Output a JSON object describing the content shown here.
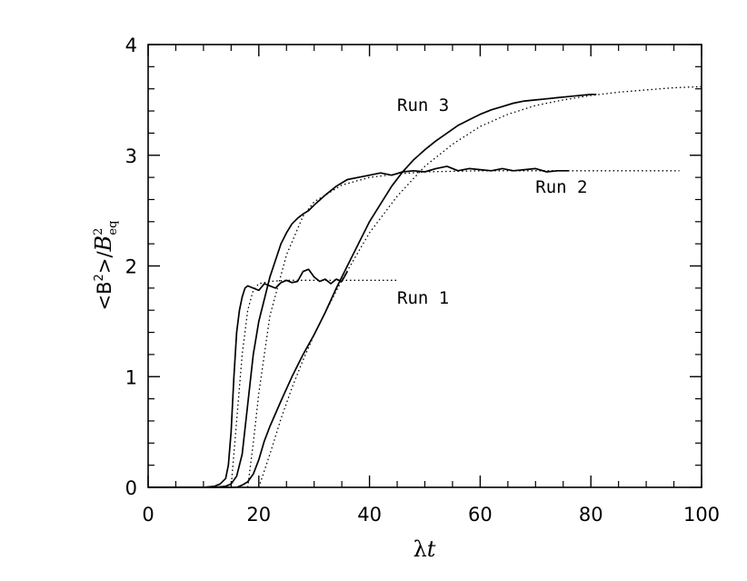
{
  "chart_data": {
    "type": "line",
    "xlabel_symbol": "λ",
    "xlabel_var": "t",
    "ylabel_left": "<B",
    "ylabel_sup": "2",
    "ylabel_right": ">/",
    "ylabel_var": "B",
    "ylabel_var_sup": "2",
    "ylabel_var_sub": "eq",
    "xlim": [
      0,
      100
    ],
    "ylim": [
      0,
      4
    ],
    "xticks": [
      0,
      20,
      40,
      60,
      80,
      100
    ],
    "yticks": [
      0,
      1,
      2,
      3,
      4
    ],
    "grid": false,
    "series": [
      {
        "name": "Run 1",
        "style": "solid",
        "x": [
          0,
          10,
          12,
          13,
          14,
          14.5,
          15,
          15.5,
          16,
          16.5,
          17,
          17.5,
          18,
          19,
          20,
          21,
          22,
          23,
          24,
          25,
          26,
          27,
          28,
          29,
          30,
          31,
          32,
          33,
          34,
          35,
          36
        ],
        "y": [
          0,
          0,
          0.01,
          0.03,
          0.08,
          0.2,
          0.5,
          1.0,
          1.4,
          1.6,
          1.72,
          1.8,
          1.82,
          1.8,
          1.78,
          1.84,
          1.82,
          1.8,
          1.85,
          1.87,
          1.85,
          1.86,
          1.95,
          1.97,
          1.9,
          1.86,
          1.88,
          1.84,
          1.88,
          1.86,
          1.95
        ]
      },
      {
        "name": "Run 1 fit",
        "style": "dotted",
        "x": [
          15,
          16,
          17,
          18,
          19,
          20,
          22,
          25,
          30,
          35,
          40,
          45
        ],
        "y": [
          0,
          0.6,
          1.2,
          1.6,
          1.78,
          1.84,
          1.86,
          1.87,
          1.87,
          1.87,
          1.87,
          1.87
        ]
      },
      {
        "name": "Run 2",
        "style": "solid",
        "x": [
          0,
          12,
          14,
          15,
          16,
          17,
          18,
          19,
          20,
          21,
          22,
          23,
          24,
          25,
          26,
          27,
          28,
          29,
          30,
          32,
          34,
          36,
          38,
          40,
          42,
          44,
          46,
          48,
          50,
          52,
          54,
          56,
          58,
          60,
          62,
          64,
          66,
          68,
          70,
          72,
          74,
          76
        ],
        "y": [
          0,
          0,
          0.01,
          0.03,
          0.1,
          0.3,
          0.75,
          1.2,
          1.5,
          1.7,
          1.9,
          2.05,
          2.2,
          2.3,
          2.38,
          2.43,
          2.47,
          2.5,
          2.55,
          2.64,
          2.72,
          2.78,
          2.8,
          2.82,
          2.84,
          2.82,
          2.85,
          2.86,
          2.85,
          2.88,
          2.9,
          2.86,
          2.88,
          2.87,
          2.86,
          2.88,
          2.86,
          2.87,
          2.88,
          2.85,
          2.86,
          2.86
        ]
      },
      {
        "name": "Run 2 fit",
        "style": "dotted",
        "x": [
          18,
          19,
          20,
          22,
          25,
          28,
          30,
          35,
          40,
          45,
          50,
          60,
          70,
          80,
          90,
          96
        ],
        "y": [
          0,
          0.4,
          0.85,
          1.55,
          2.1,
          2.45,
          2.58,
          2.73,
          2.8,
          2.83,
          2.85,
          2.86,
          2.86,
          2.86,
          2.86,
          2.86
        ]
      },
      {
        "name": "Run 3",
        "style": "solid",
        "x": [
          0,
          16,
          17,
          18,
          19,
          20,
          21,
          22,
          24,
          26,
          28,
          30,
          32,
          34,
          36,
          38,
          40,
          42,
          44,
          46,
          48,
          50,
          52,
          54,
          56,
          58,
          60,
          62,
          64,
          66,
          68,
          70,
          72,
          74,
          76,
          78,
          80,
          81
        ],
        "y": [
          0,
          0,
          0.02,
          0.05,
          0.12,
          0.25,
          0.42,
          0.55,
          0.78,
          1.0,
          1.2,
          1.38,
          1.58,
          1.8,
          2.0,
          2.2,
          2.4,
          2.56,
          2.72,
          2.85,
          2.96,
          3.05,
          3.13,
          3.2,
          3.27,
          3.32,
          3.37,
          3.41,
          3.44,
          3.47,
          3.49,
          3.5,
          3.51,
          3.52,
          3.53,
          3.54,
          3.55,
          3.55
        ]
      },
      {
        "name": "Run 3 fit",
        "style": "dotted",
        "x": [
          20,
          22,
          24,
          26,
          28,
          30,
          32,
          35,
          40,
          45,
          50,
          55,
          60,
          65,
          70,
          75,
          80,
          85,
          90,
          95,
          100
        ],
        "y": [
          0,
          0.3,
          0.62,
          0.9,
          1.15,
          1.38,
          1.58,
          1.87,
          2.3,
          2.63,
          2.9,
          3.1,
          3.26,
          3.37,
          3.45,
          3.5,
          3.54,
          3.57,
          3.59,
          3.61,
          3.62
        ]
      }
    ],
    "annotations": [
      {
        "text": "Run 1",
        "x": 45,
        "y": 1.66
      },
      {
        "text": "Run 2",
        "x": 70,
        "y": 2.66
      },
      {
        "text": "Run 3",
        "x": 45,
        "y": 3.4
      }
    ]
  }
}
